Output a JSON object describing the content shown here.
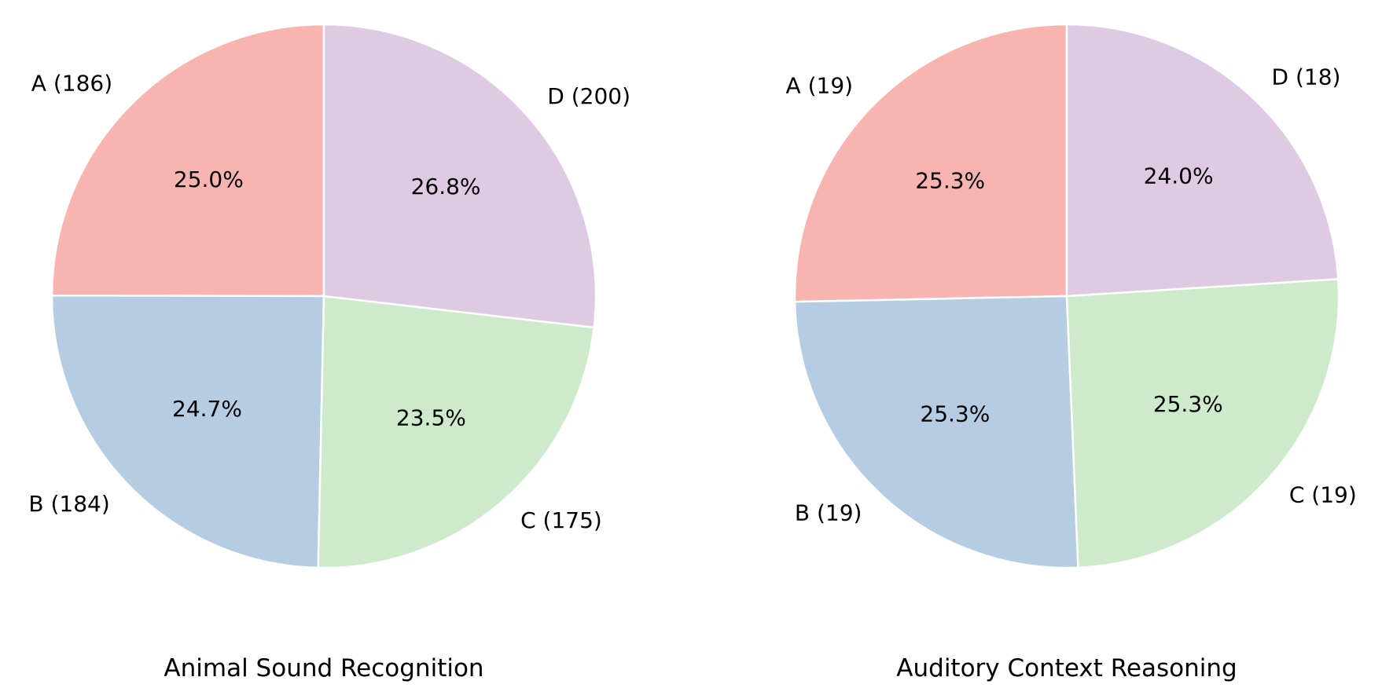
{
  "chart_data": [
    {
      "type": "pie",
      "title": "Animal Sound Recognition",
      "slices": [
        {
          "label": "A (186)",
          "value": 186,
          "percent": "25.0%",
          "color": "#f8b4b0"
        },
        {
          "label": "B (184)",
          "value": 184,
          "percent": "24.7%",
          "color": "#b5cce3"
        },
        {
          "label": "C (175)",
          "value": 175,
          "percent": "23.5%",
          "color": "#cdeaca"
        },
        {
          "label": "D (200)",
          "value": 200,
          "percent": "26.8%",
          "color": "#decae3"
        }
      ],
      "start_angle_deg": 90,
      "direction": "counterclockwise"
    },
    {
      "type": "pie",
      "title": "Auditory Context Reasoning",
      "slices": [
        {
          "label": "A (19)",
          "value": 19,
          "percent": "25.3%",
          "color": "#f8b4b0"
        },
        {
          "label": "B (19)",
          "value": 19,
          "percent": "25.3%",
          "color": "#b5cce3"
        },
        {
          "label": "C (19)",
          "value": 19,
          "percent": "25.3%",
          "color": "#cdeaca"
        },
        {
          "label": "D (18)",
          "value": 18,
          "percent": "24.0%",
          "color": "#decae3"
        }
      ],
      "start_angle_deg": 90,
      "direction": "counterclockwise"
    }
  ]
}
